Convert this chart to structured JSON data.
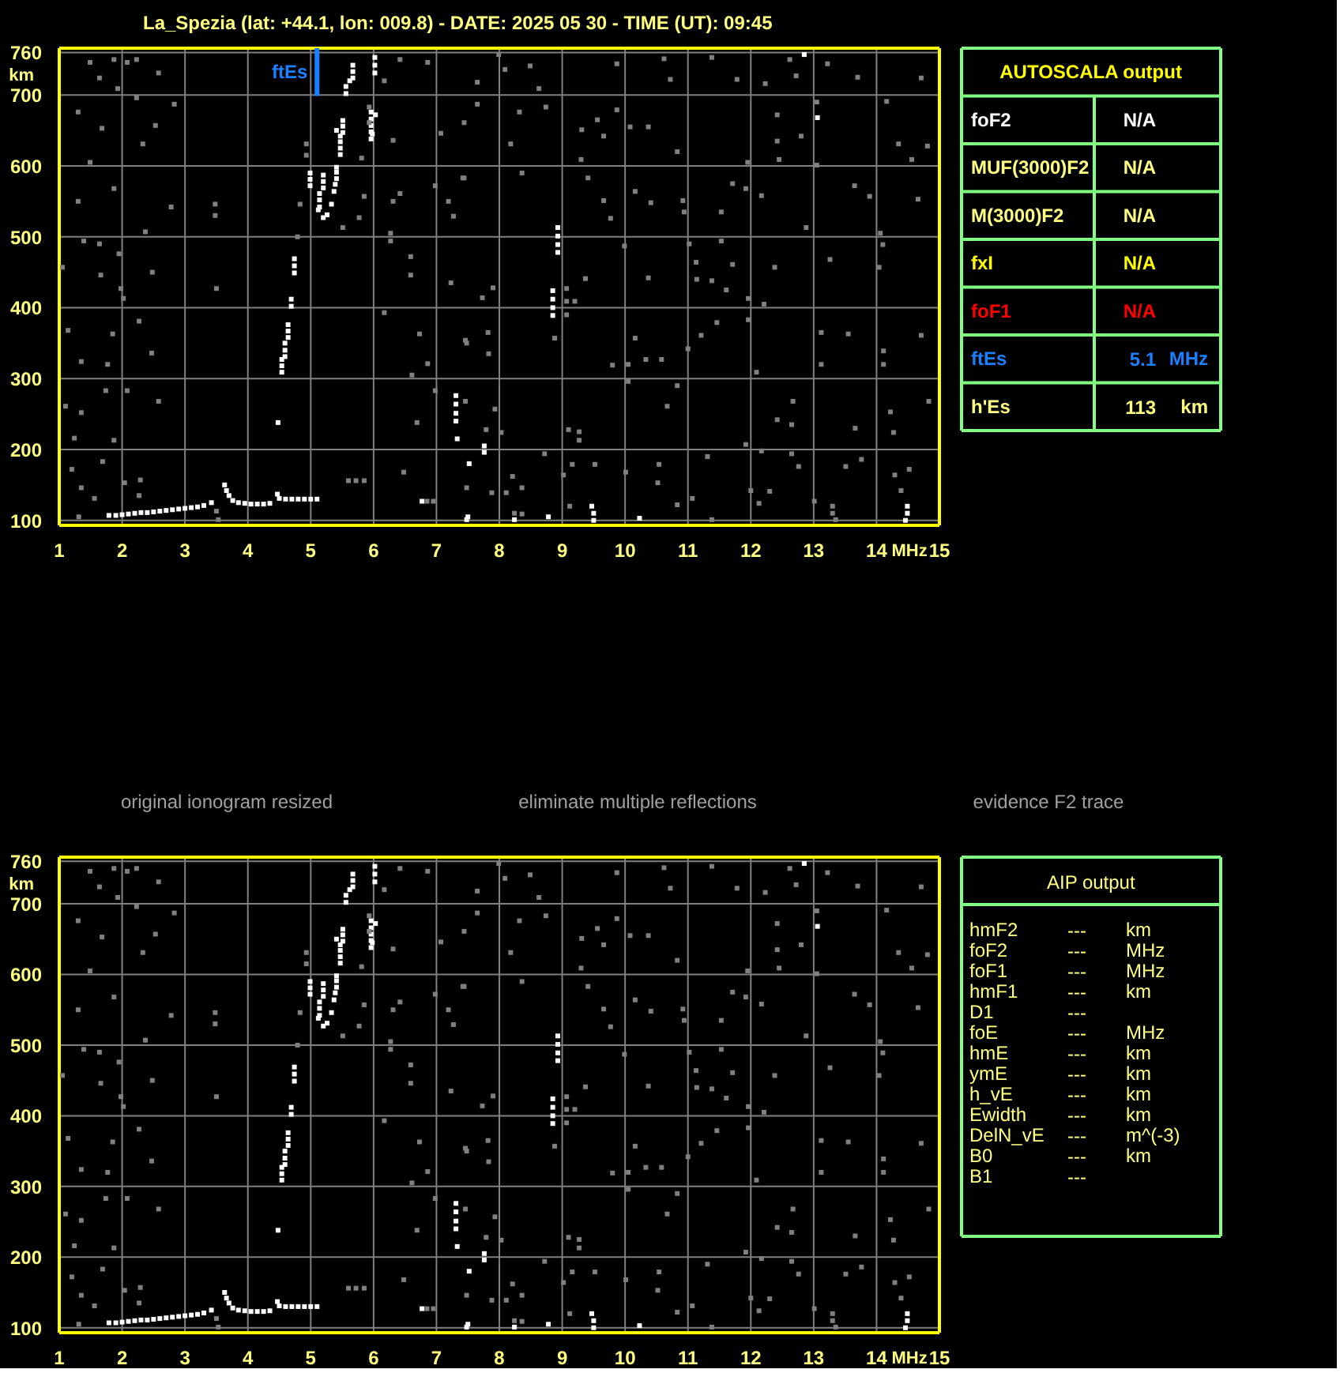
{
  "chart_data": [
    {
      "type": "scatter",
      "title": "La_Spezia (lat: +44.1, lon: 009.8) - DATE: 2025 05 30 - TIME (UT): 09:45",
      "xlabel": "MHz",
      "ylabel": "km",
      "xlim": [
        1,
        15
      ],
      "ylim": [
        93,
        766
      ],
      "xticks": [
        1,
        2,
        3,
        4,
        5,
        6,
        7,
        8,
        9,
        10,
        11,
        12,
        13,
        14,
        15
      ],
      "yticks": [
        100,
        200,
        300,
        400,
        500,
        600,
        700,
        760
      ],
      "grid": true,
      "marker": "square",
      "ref_lines": [
        {
          "axis": "x",
          "value": 5.1,
          "label": "ftEs",
          "color": "#1a80ff"
        }
      ],
      "series": [
        {
          "color": "#ffffff",
          "x": [
            1.79,
            1.9,
            2.0,
            2.1,
            2.2,
            2.3,
            2.4,
            2.5,
            2.6,
            2.7,
            2.8,
            2.9,
            3.0,
            3.1,
            3.2,
            3.3,
            3.42,
            3.63,
            3.66,
            3.7,
            3.76,
            3.85,
            3.95,
            4.05,
            4.15,
            4.25,
            4.35,
            4.47,
            4.5,
            4.6,
            4.7,
            4.8,
            4.9,
            5.0,
            5.1,
            4.48,
            4.54,
            4.54,
            4.54,
            4.59,
            4.59,
            4.59,
            4.64,
            4.64,
            4.64,
            4.69,
            4.69,
            4.74,
            4.74,
            4.74,
            4.99,
            4.99,
            4.99,
            5.14,
            5.14,
            5.14,
            5.12,
            5.2,
            5.26,
            5.33,
            5.37,
            5.39,
            5.41,
            5.41,
            5.41,
            5.2,
            5.2,
            5.2,
            5.47,
            5.47,
            5.47,
            5.47,
            5.51,
            5.51,
            5.51,
            5.41,
            5.56,
            5.56,
            5.62,
            5.67,
            5.67,
            5.67,
            5.96,
            5.96,
            5.96,
            5.96,
            5.96,
            5.98,
            6.02,
            6.02,
            6.02,
            6.03,
            7.31,
            7.31,
            7.31,
            7.31,
            7.33,
            7.52,
            6.77,
            7.5,
            8.93,
            8.93,
            8.93,
            8.93,
            8.85,
            8.85,
            8.85,
            8.85,
            9.47,
            9.5,
            9.5,
            7.76,
            7.76,
            14.49,
            14.49,
            14.46,
            12.85,
            13.06,
            10.23,
            8.78,
            7.48,
            8.24
          ],
          "values": [
            107,
            107,
            108,
            109,
            110,
            111,
            111,
            112,
            113,
            114,
            115,
            116,
            117,
            118,
            119,
            121,
            125,
            150,
            142,
            135,
            128,
            125,
            124,
            123,
            123,
            123,
            124,
            137,
            131,
            130,
            130,
            130,
            130,
            130,
            130,
            238,
            309,
            318,
            327,
            331,
            340,
            350,
            358,
            367,
            376,
            402,
            412,
            449,
            459,
            469,
            572,
            581,
            590,
            542,
            552,
            561,
            538,
            527,
            531,
            546,
            564,
            574,
            582,
            591,
            598,
            569,
            578,
            587,
            616,
            625,
            634,
            642,
            647,
            656,
            664,
            650,
            702,
            712,
            720,
            724,
            733,
            742,
            638,
            648,
            657,
            666,
            676,
            645,
            731,
            742,
            753,
            672,
            240,
            251,
            264,
            276,
            215,
            180,
            127,
            105,
            478,
            489,
            501,
            513,
            389,
            400,
            412,
            424,
            120,
            110,
            100,
            196,
            205,
            110,
            120,
            100,
            757,
            668,
            103,
            105,
            101,
            101
          ]
        },
        {
          "color": "#808080",
          "x": [
            1.49,
            1.87,
            2.08,
            2.23,
            2.58,
            1.64,
            1.93,
            2.23,
            2.83,
            1.3,
            1.68,
            2.53,
            2.33,
            1.49,
            1.87,
            1.3,
            2.78,
            3.48,
            3.48,
            2.37,
            1.39,
            1.64,
            1.95,
            1.05,
            1.66,
            2.48,
            1.98,
            3.5,
            2.02,
            1.14,
            1.85,
            2.27,
            1.35,
            1.77,
            2.47,
            1.74,
            2.08,
            2.58,
            1.1,
            1.35,
            1.24,
            1.87,
            1.2,
            1.69,
            2.29,
            2.27,
            2.04,
            1.35,
            1.56,
            3.5,
            3.53,
            1.31,
            5.6,
            5.72,
            5.85,
            6.85,
            6.95,
            6.17,
            6.27,
            6.27,
            6.59,
            6.59,
            6.73,
            6.86,
            6.61,
            6.98,
            6.69,
            6.48,
            6.31,
            6.42,
            6.31,
            5.93,
            6.17,
            6.42,
            6.86,
            7.07,
            7.44,
            7.19,
            7.44,
            6.98,
            7.27,
            7.23,
            7.48,
            4.93,
            4.93,
            4.83,
            4.79,
            5.51,
            5.77,
            5.85,
            5.81,
            5.93,
            7.99,
            8.09,
            8.49,
            8.63,
            7.65,
            8.32,
            8.74,
            8.18,
            8.36,
            7.65,
            9.31,
            9.56,
            9.66,
            9.87,
            10.08,
            9.87,
            10.62,
            10.72,
            10.83,
            10.37,
            9.3,
            9.41,
            9.66,
            9.77,
            10.16,
            10.41,
            10.92,
            10.94,
            11.53,
            11.71,
            11.92,
            12.17,
            11.38,
            11.78,
            12.23,
            12.62,
            12.72,
            12.42,
            12.42,
            12.8,
            13.05,
            13.22,
            13.7,
            14.16,
            14.35,
            14.56,
            14.81,
            14.71,
            11.95,
            12.45,
            13.05,
            13.65,
            13.89,
            14.66,
            14.06,
            14.1,
            14.04,
            13.26,
            12.88,
            12.38,
            11.71,
            11.53,
            11.13,
            11.02,
            11.14,
            11.38,
            11.61,
            11.96,
            11.96,
            12.21,
            11.46,
            11.21,
            11.0,
            10.37,
            9.99,
            9.07,
            9.07,
            9.07,
            9.37,
            9.2,
            8.88,
            10.16,
            10.33,
            10.58,
            10.05,
            9.8,
            10.05,
            10.67,
            10.83,
            12.09,
            12.67,
            12.65,
            12.42,
            13.12,
            13.12,
            13.55,
            14.11,
            14.11,
            14.71,
            14.83,
            14.22,
            14.27,
            13.66,
            13.51,
            12.76,
            12.65,
            12.17,
            11.92,
            11.31,
            11.07,
            10.54,
            10.52,
            10.01,
            9.52,
            9.27,
            9.27,
            9.1,
            9.16,
            9.02,
            9.12,
            8.21,
            8.36,
            8.11,
            7.88,
            7.48,
            7.79,
            7.93,
            7.46,
            8.03,
            7.82,
            7.73,
            7.9,
            7.46,
            7.42,
            7.83,
            8.72,
            10.83,
            11.38,
            12.0,
            12.13,
            12.3,
            13.01,
            13.3,
            13.3,
            13.35,
            13.76,
            14.52,
            14.39,
            14.29,
            8.36,
            8.24
          ],
          "values": [
            746,
            750,
            746,
            750,
            731,
            724,
            709,
            696,
            687,
            676,
            653,
            657,
            631,
            605,
            568,
            550,
            542,
            546,
            530,
            507,
            494,
            490,
            476,
            457,
            446,
            450,
            427,
            427,
            413,
            368,
            363,
            381,
            324,
            320,
            336,
            283,
            283,
            268,
            261,
            252,
            216,
            213,
            172,
            183,
            157,
            135,
            153,
            146,
            131,
            113,
            101,
            105,
            156,
            156,
            156,
            127,
            127,
            393,
            505,
            494,
            472,
            446,
            363,
            321,
            305,
            283,
            238,
            168,
            550,
            561,
            636,
            661,
            720,
            750,
            746,
            646,
            661,
            550,
            583,
            572,
            529,
            435,
            350,
            631,
            615,
            546,
            500,
            513,
            527,
            557,
            611,
            683,
            757,
            736,
            741,
            709,
            718,
            676,
            683,
            631,
            590,
            687,
            651,
            665,
            642,
            679,
            655,
            744,
            751,
            722,
            620,
            655,
            609,
            583,
            551,
            526,
            564,
            548,
            551,
            535,
            535,
            575,
            568,
            558,
            753,
            722,
            716,
            750,
            727,
            672,
            635,
            642,
            690,
            744,
            725,
            691,
            631,
            609,
            628,
            724,
            605,
            609,
            601,
            572,
            557,
            553,
            505,
            489,
            457,
            468,
            513,
            457,
            461,
            494,
            464,
            490,
            440,
            438,
            425,
            413,
            383,
            405,
            379,
            361,
            342,
            442,
            487,
            427,
            409,
            390,
            441,
            409,
            357,
            357,
            327,
            327,
            320,
            319,
            296,
            261,
            290,
            309,
            268,
            235,
            242,
            365,
            320,
            363,
            339,
            320,
            361,
            268,
            253,
            224,
            230,
            176,
            176,
            194,
            198,
            207,
            190,
            131,
            179,
            153,
            168,
            179,
            213,
            225,
            228,
            179,
            164,
            120,
            162,
            146,
            139,
            139,
            146,
            228,
            257,
            268,
            224,
            365,
            414,
            428,
            354,
            583,
            335,
            194,
            122,
            101,
            142,
            124,
            141,
            127,
            120,
            110,
            101,
            186,
            172,
            142,
            164,
            109,
            110
          ]
        }
      ]
    },
    {
      "type": "other",
      "title": "AUTOSCALA output",
      "categories": [
        "foF2",
        "MUF(3000)F2",
        "M(3000)F2",
        "fxI",
        "foF1",
        "ftEs",
        "h'Es"
      ],
      "value_labels": [
        "N/A",
        "N/A",
        "N/A",
        "N/A",
        "N/A",
        "5.1",
        "113"
      ],
      "y2_categories": [
        null,
        null,
        null,
        null,
        null,
        "MHz",
        "km"
      ],
      "colors": [
        "#ffffff",
        "#ffff80",
        "#ffff80",
        "#ffff00",
        "#ff0000",
        "#1a80ff",
        "#ffff80"
      ]
    },
    {
      "type": "other",
      "title": "original ionogram resized"
    },
    {
      "type": "other",
      "title": "eliminate multiple reflections"
    },
    {
      "type": "other",
      "title": "evidence F2 trace"
    },
    {
      "type": "scatter",
      "xlabel": "MHz",
      "ylabel": "km",
      "xlim": [
        1,
        15
      ],
      "ylim": [
        93,
        766
      ],
      "xticks": [
        1,
        2,
        3,
        4,
        5,
        6,
        7,
        8,
        9,
        10,
        11,
        12,
        13,
        14,
        15
      ],
      "yticks": [
        100,
        200,
        300,
        400,
        500,
        600,
        700,
        760
      ],
      "grid": true,
      "marker": "square",
      "series": [
        {
          "color": "#ffffff",
          "x": [
            1.79,
            1.9,
            2.0,
            2.1,
            2.2,
            2.3,
            2.4,
            2.5,
            2.6,
            2.7,
            2.8,
            2.9,
            3.0,
            3.1,
            3.2,
            3.3,
            3.42,
            3.63,
            3.66,
            3.7,
            3.76,
            3.85,
            3.95,
            4.05,
            4.15,
            4.25,
            4.35,
            4.47,
            4.5,
            4.6,
            4.7,
            4.8,
            4.9,
            5.0,
            5.1,
            4.48,
            4.54,
            4.54,
            4.54,
            4.59,
            4.59,
            4.59,
            4.64,
            4.64,
            4.64,
            4.69,
            4.69,
            4.74,
            4.74,
            4.74,
            4.99,
            4.99,
            4.99,
            5.14,
            5.14,
            5.14,
            5.12,
            5.2,
            5.26,
            5.33,
            5.37,
            5.39,
            5.41,
            5.41,
            5.41,
            5.2,
            5.2,
            5.2,
            5.47,
            5.47,
            5.47,
            5.47,
            5.51,
            5.51,
            5.51,
            5.41,
            5.56,
            5.56,
            5.62,
            5.67,
            5.67,
            5.67,
            5.96,
            5.96,
            5.96,
            5.96,
            5.96,
            5.98,
            6.02,
            6.02,
            6.02,
            6.03,
            7.31,
            7.31,
            7.31,
            7.31,
            7.33,
            7.52,
            6.77,
            7.5,
            8.93,
            8.93,
            8.93,
            8.93,
            8.85,
            8.85,
            8.85,
            8.85,
            9.47,
            9.5,
            9.5,
            7.76,
            7.76,
            14.49,
            14.49,
            14.46,
            12.85,
            13.06,
            10.23,
            8.78,
            7.48,
            8.24
          ],
          "values": [
            107,
            107,
            108,
            109,
            110,
            111,
            111,
            112,
            113,
            114,
            115,
            116,
            117,
            118,
            119,
            121,
            125,
            150,
            142,
            135,
            128,
            125,
            124,
            123,
            123,
            123,
            124,
            137,
            131,
            130,
            130,
            130,
            130,
            130,
            130,
            238,
            309,
            318,
            327,
            331,
            340,
            350,
            358,
            367,
            376,
            402,
            412,
            449,
            459,
            469,
            572,
            581,
            590,
            542,
            552,
            561,
            538,
            527,
            531,
            546,
            564,
            574,
            582,
            591,
            598,
            569,
            578,
            587,
            616,
            625,
            634,
            642,
            647,
            656,
            664,
            650,
            702,
            712,
            720,
            724,
            733,
            742,
            638,
            648,
            657,
            666,
            676,
            645,
            731,
            742,
            753,
            672,
            240,
            251,
            264,
            276,
            215,
            180,
            127,
            105,
            478,
            489,
            501,
            513,
            389,
            400,
            412,
            424,
            120,
            110,
            100,
            196,
            205,
            110,
            120,
            100,
            757,
            668,
            103,
            105,
            101,
            101
          ]
        },
        {
          "color": "#808080",
          "x": [
            1.49,
            1.87,
            2.08,
            2.23,
            2.58,
            1.64,
            1.93,
            2.23,
            2.83,
            1.3,
            1.68,
            2.53,
            2.33,
            1.49,
            1.87,
            1.3,
            2.78,
            3.48,
            3.48,
            2.37,
            1.39,
            1.64,
            1.95,
            1.05,
            1.66,
            2.48,
            1.98,
            3.5,
            2.02,
            1.14,
            1.85,
            2.27,
            1.35,
            1.77,
            2.47,
            1.74,
            2.08,
            2.58,
            1.1,
            1.35,
            1.24,
            1.87,
            1.2,
            1.69,
            2.29,
            2.27,
            2.04,
            1.35,
            1.56,
            3.5,
            3.53,
            1.31,
            5.6,
            5.72,
            5.85,
            6.85,
            6.95,
            6.17,
            6.27,
            6.27,
            6.59,
            6.59,
            6.73,
            6.86,
            6.61,
            6.98,
            6.69,
            6.48,
            6.31,
            6.42,
            6.31,
            5.93,
            6.17,
            6.42,
            6.86,
            7.07,
            7.44,
            7.19,
            7.44,
            6.98,
            7.27,
            7.23,
            7.48,
            4.93,
            4.93,
            4.83,
            4.79,
            5.51,
            5.77,
            5.85,
            5.81,
            5.93,
            7.99,
            8.09,
            8.49,
            8.63,
            7.65,
            8.32,
            8.74,
            8.18,
            8.36,
            7.65,
            9.31,
            9.56,
            9.66,
            9.87,
            10.08,
            9.87,
            10.62,
            10.72,
            10.83,
            10.37,
            9.3,
            9.41,
            9.66,
            9.77,
            10.16,
            10.41,
            10.92,
            10.94,
            11.53,
            11.71,
            11.92,
            12.17,
            11.38,
            11.78,
            12.23,
            12.62,
            12.72,
            12.42,
            12.42,
            12.8,
            13.05,
            13.22,
            13.7,
            14.16,
            14.35,
            14.56,
            14.81,
            14.71,
            11.95,
            12.45,
            13.05,
            13.65,
            13.89,
            14.66,
            14.06,
            14.1,
            14.04,
            13.26,
            12.88,
            12.38,
            11.71,
            11.53,
            11.13,
            11.02,
            11.14,
            11.38,
            11.61,
            11.96,
            11.96,
            12.21,
            11.46,
            11.21,
            11.0,
            10.37,
            9.99,
            9.07,
            9.07,
            9.07,
            9.37,
            9.2,
            8.88,
            10.16,
            10.33,
            10.58,
            10.05,
            9.8,
            10.05,
            10.67,
            10.83,
            12.09,
            12.67,
            12.65,
            12.42,
            13.12,
            13.12,
            13.55,
            14.11,
            14.11,
            14.71,
            14.83,
            14.22,
            14.27,
            13.66,
            13.51,
            12.76,
            12.65,
            12.17,
            11.92,
            11.31,
            11.07,
            10.54,
            10.52,
            10.01,
            9.52,
            9.27,
            9.27,
            9.1,
            9.16,
            9.02,
            9.12,
            8.21,
            8.36,
            8.11,
            7.88,
            7.48,
            7.79,
            7.93,
            7.46,
            8.03,
            7.82,
            7.73,
            7.9,
            7.46,
            7.42,
            7.83,
            8.72,
            10.83,
            11.38,
            12.0,
            12.13,
            12.3,
            13.01,
            13.3,
            13.3,
            13.35,
            13.76,
            14.52,
            14.39,
            14.29,
            8.36,
            8.24
          ],
          "values": [
            746,
            750,
            746,
            750,
            731,
            724,
            709,
            696,
            687,
            676,
            653,
            657,
            631,
            605,
            568,
            550,
            542,
            546,
            530,
            507,
            494,
            490,
            476,
            457,
            446,
            450,
            427,
            427,
            413,
            368,
            363,
            381,
            324,
            320,
            336,
            283,
            283,
            268,
            261,
            252,
            216,
            213,
            172,
            183,
            157,
            135,
            153,
            146,
            131,
            113,
            101,
            105,
            156,
            156,
            156,
            127,
            127,
            393,
            505,
            494,
            472,
            446,
            363,
            321,
            305,
            283,
            238,
            168,
            550,
            561,
            636,
            661,
            720,
            750,
            746,
            646,
            661,
            550,
            583,
            572,
            529,
            435,
            350,
            631,
            615,
            546,
            500,
            513,
            527,
            557,
            611,
            683,
            757,
            736,
            741,
            709,
            718,
            676,
            683,
            631,
            590,
            687,
            651,
            665,
            642,
            679,
            655,
            744,
            751,
            722,
            620,
            655,
            609,
            583,
            551,
            526,
            564,
            548,
            551,
            535,
            535,
            575,
            568,
            558,
            753,
            722,
            716,
            750,
            727,
            672,
            635,
            642,
            690,
            744,
            725,
            691,
            631,
            609,
            628,
            724,
            605,
            609,
            601,
            572,
            557,
            553,
            505,
            489,
            457,
            468,
            513,
            457,
            461,
            494,
            464,
            490,
            440,
            438,
            425,
            413,
            383,
            405,
            379,
            361,
            342,
            442,
            487,
            427,
            409,
            390,
            441,
            409,
            357,
            357,
            327,
            327,
            320,
            319,
            296,
            261,
            290,
            309,
            268,
            235,
            242,
            365,
            320,
            363,
            339,
            320,
            361,
            268,
            253,
            224,
            230,
            176,
            176,
            194,
            198,
            207,
            190,
            131,
            179,
            153,
            168,
            179,
            213,
            225,
            228,
            179,
            164,
            120,
            162,
            146,
            139,
            139,
            146,
            228,
            257,
            268,
            224,
            365,
            414,
            428,
            354,
            583,
            335,
            194,
            122,
            101,
            142,
            124,
            141,
            127,
            120,
            110,
            101,
            186,
            172,
            142,
            164,
            109,
            110
          ]
        }
      ]
    },
    {
      "type": "other",
      "title": "AIP output",
      "categories": [
        "hmF2",
        "foF2",
        "foF1",
        "hmF1",
        "D1",
        "foE",
        "hmE",
        "ymE",
        "h_vE",
        "Ewidth",
        "DelN_vE",
        "B0",
        "B1"
      ],
      "value_labels": [
        "---",
        "---",
        "---",
        "---",
        "---",
        "---",
        "---",
        "---",
        "---",
        "---",
        "---",
        "---",
        "---"
      ],
      "y2_categories": [
        "km",
        "MHz",
        "MHz",
        "km",
        null,
        "MHz",
        "km",
        "km",
        "km",
        "km",
        "m^(-3)",
        "km",
        null
      ],
      "color": "#ffff80"
    }
  ]
}
